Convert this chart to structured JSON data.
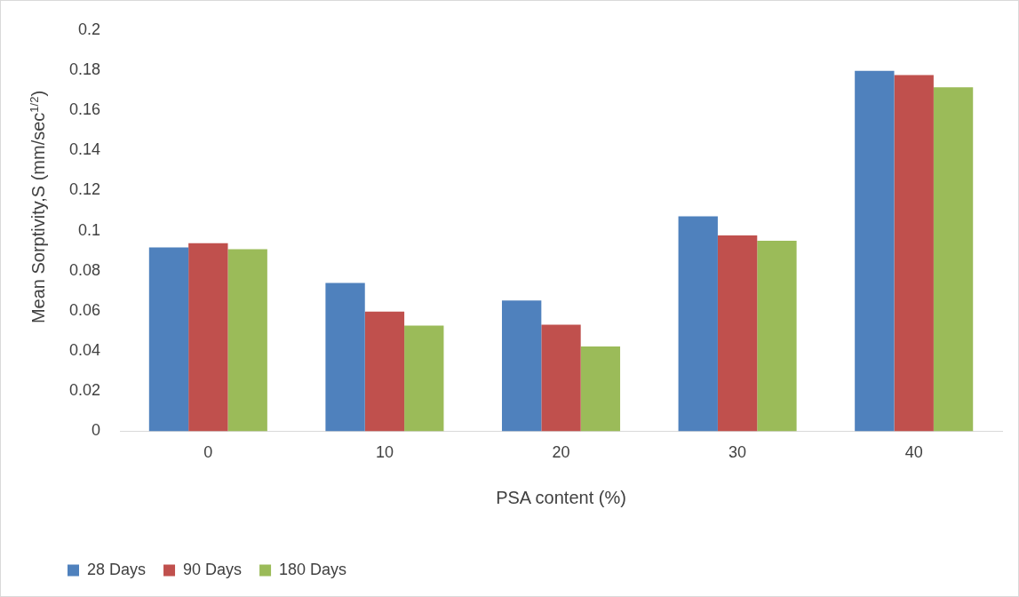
{
  "chart_data": {
    "type": "bar",
    "xlabel": "PSA content (%)",
    "ylabel": "Mean Sorptivity,S (mm/sec$^{1/2}$)",
    "categories": [
      "0",
      "10",
      "20",
      "30",
      "40"
    ],
    "series": [
      {
        "name": "28 Days",
        "color": "#4f81bd",
        "values": [
          0.0916,
          0.0739,
          0.0652,
          0.1071,
          0.1797
        ]
      },
      {
        "name": "90 Days",
        "color": "#c0504d",
        "values": [
          0.0937,
          0.0596,
          0.0531,
          0.0976,
          0.1775
        ]
      },
      {
        "name": "180 Days",
        "color": "#9bbb59",
        "values": [
          0.0907,
          0.0527,
          0.0423,
          0.095,
          0.1715
        ]
      }
    ],
    "ylim": [
      0,
      0.2
    ],
    "yticks": [
      0,
      0.02,
      0.04,
      0.06,
      0.08,
      0.1,
      0.12,
      0.14,
      0.16,
      0.18,
      0.2
    ],
    "grid": false,
    "legend": "bottom"
  }
}
